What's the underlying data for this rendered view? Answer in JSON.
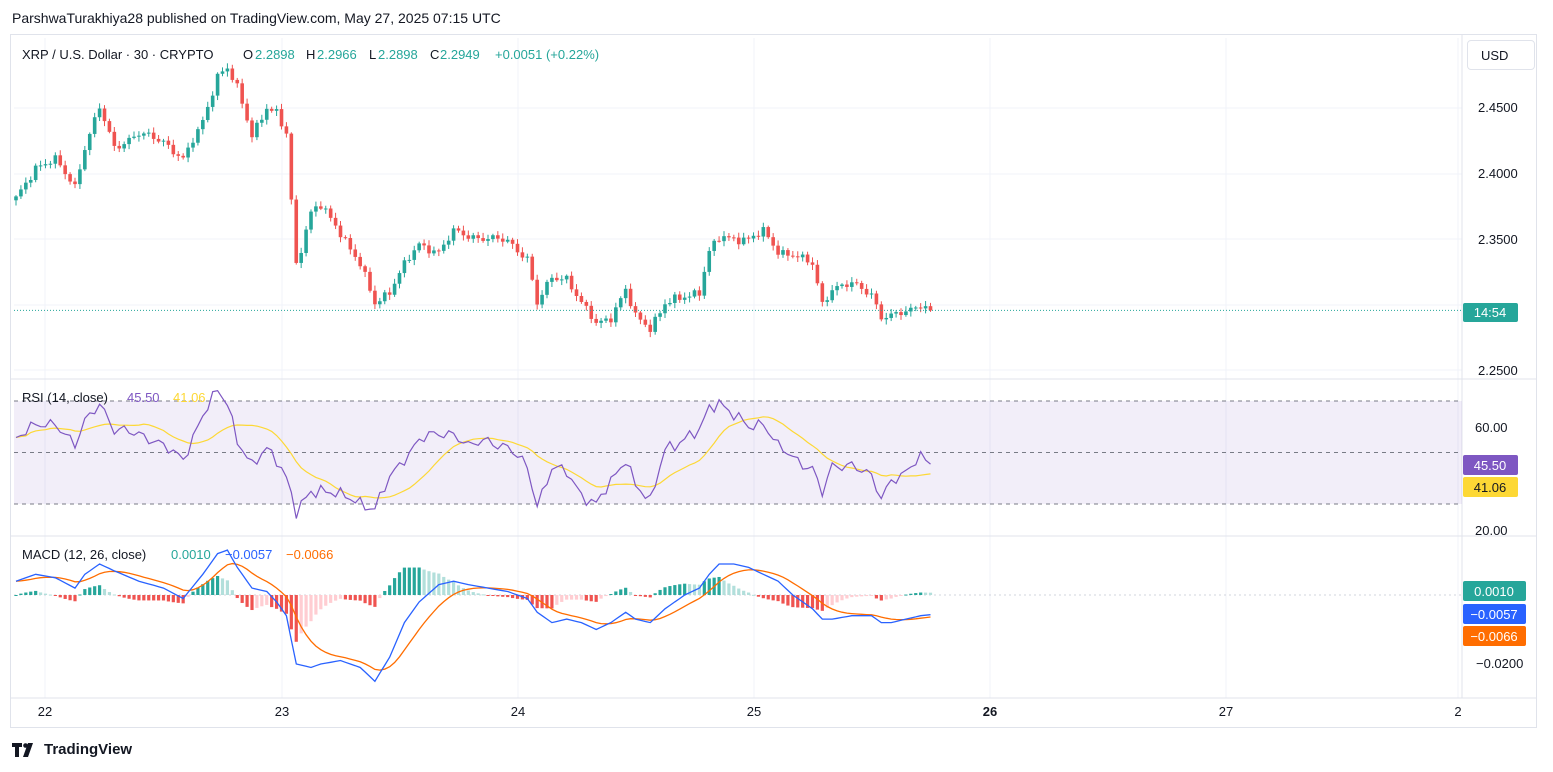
{
  "header": {
    "text": "ParshwaTurakhiya28 published on TradingView.com, May 27, 2025 07:15 UTC"
  },
  "legend": {
    "symbol": "XRP / U.S. Dollar · 30 · CRYPTO",
    "o_label": "O",
    "o_value": "2.2898",
    "h_label": "H",
    "h_value": "2.2966",
    "l_label": "L",
    "l_value": "2.2898",
    "c_label": "C",
    "c_value": "2.2949",
    "change": "+0.0051 (+0.22%)"
  },
  "currency_button": "USD",
  "price_axis": {
    "ticks": [
      "2.4500",
      "2.4000",
      "2.3500",
      "2.2500"
    ],
    "countdown": "14:54"
  },
  "rsi": {
    "title": "RSI (14, close)",
    "value_label": "45.50",
    "ma_label": "41.06",
    "ticks": [
      "60.00",
      "20.00"
    ],
    "badge_rsi": "45.50",
    "badge_ma": "41.06"
  },
  "macd": {
    "title": "MACD (12, 26, close)",
    "hist_label": "0.0010",
    "macd_label": "−0.0057",
    "signal_label": "−0.0066",
    "ticks": [
      "−0.0200"
    ],
    "badge_hist": "0.0010",
    "badge_macd": "−0.0057",
    "badge_signal": "−0.0066"
  },
  "time_axis": {
    "labels": [
      "22",
      "23",
      "24",
      "25",
      "26",
      "27",
      "2"
    ]
  },
  "footer": {
    "brand": "TradingView"
  },
  "colors": {
    "up": "#26a69a",
    "down": "#ef5350",
    "rsi": "#7e57c2",
    "rsi_ma": "#fdd835",
    "macd": "#2962ff",
    "signal": "#ff6d00",
    "hist_up_strong": "#26a69a",
    "hist_up_weak": "#b2dfdb",
    "hist_down_strong": "#ef5350",
    "hist_down_weak": "#ffcdd2"
  },
  "chart_data": {
    "type": "candlestick",
    "price_ylim": [
      2.242,
      2.5
    ],
    "current_price": 2.2949,
    "anchors": [
      [
        0,
        2.38
      ],
      [
        4,
        2.405
      ],
      [
        8,
        2.41
      ],
      [
        12,
        2.39
      ],
      [
        14,
        2.42
      ],
      [
        17,
        2.45
      ],
      [
        20,
        2.42
      ],
      [
        25,
        2.43
      ],
      [
        30,
        2.425
      ],
      [
        34,
        2.41
      ],
      [
        38,
        2.44
      ],
      [
        41,
        2.475
      ],
      [
        43,
        2.48
      ],
      [
        45,
        2.465
      ],
      [
        48,
        2.43
      ],
      [
        51,
        2.45
      ],
      [
        53,
        2.445
      ],
      [
        55,
        2.43
      ],
      [
        57,
        2.33
      ],
      [
        60,
        2.37
      ],
      [
        62,
        2.375
      ],
      [
        66,
        2.355
      ],
      [
        70,
        2.33
      ],
      [
        73,
        2.3
      ],
      [
        76,
        2.31
      ],
      [
        79,
        2.33
      ],
      [
        82,
        2.345
      ],
      [
        86,
        2.34
      ],
      [
        89,
        2.355
      ],
      [
        92,
        2.352
      ],
      [
        96,
        2.35
      ],
      [
        100,
        2.348
      ],
      [
        104,
        2.335
      ],
      [
        106,
        2.3
      ],
      [
        109,
        2.32
      ],
      [
        112,
        2.32
      ],
      [
        115,
        2.3
      ],
      [
        118,
        2.285
      ],
      [
        121,
        2.29
      ],
      [
        124,
        2.31
      ],
      [
        126,
        2.29
      ],
      [
        129,
        2.282
      ],
      [
        132,
        2.3
      ],
      [
        136,
        2.305
      ],
      [
        139,
        2.31
      ],
      [
        141,
        2.34
      ],
      [
        143,
        2.35
      ],
      [
        146,
        2.35
      ],
      [
        149,
        2.35
      ],
      [
        152,
        2.355
      ],
      [
        155,
        2.34
      ],
      [
        158,
        2.338
      ],
      [
        162,
        2.33
      ],
      [
        164,
        2.3
      ],
      [
        166,
        2.312
      ],
      [
        170,
        2.315
      ],
      [
        174,
        2.308
      ],
      [
        176,
        2.29
      ],
      [
        178,
        2.29
      ],
      [
        181,
        2.294
      ],
      [
        184,
        2.3
      ],
      [
        186,
        2.2949
      ]
    ],
    "rsi_anchors": [
      [
        0,
        56
      ],
      [
        4,
        60
      ],
      [
        8,
        62
      ],
      [
        12,
        52
      ],
      [
        14,
        62
      ],
      [
        17,
        70
      ],
      [
        20,
        58
      ],
      [
        25,
        58
      ],
      [
        30,
        52
      ],
      [
        34,
        48
      ],
      [
        38,
        64
      ],
      [
        41,
        74
      ],
      [
        43,
        70
      ],
      [
        45,
        55
      ],
      [
        48,
        44
      ],
      [
        51,
        52
      ],
      [
        53,
        48
      ],
      [
        55,
        40
      ],
      [
        57,
        26
      ],
      [
        60,
        35
      ],
      [
        62,
        36
      ],
      [
        66,
        33
      ],
      [
        70,
        31
      ],
      [
        73,
        28
      ],
      [
        76,
        40
      ],
      [
        79,
        48
      ],
      [
        82,
        55
      ],
      [
        86,
        57
      ],
      [
        89,
        58
      ],
      [
        92,
        52
      ],
      [
        96,
        55
      ],
      [
        100,
        52
      ],
      [
        104,
        44
      ],
      [
        106,
        30
      ],
      [
        109,
        44
      ],
      [
        112,
        42
      ],
      [
        115,
        34
      ],
      [
        118,
        30
      ],
      [
        121,
        38
      ],
      [
        124,
        48
      ],
      [
        126,
        38
      ],
      [
        129,
        30
      ],
      [
        132,
        52
      ],
      [
        136,
        55
      ],
      [
        139,
        58
      ],
      [
        141,
        68
      ],
      [
        143,
        70
      ],
      [
        146,
        64
      ],
      [
        149,
        60
      ],
      [
        152,
        62
      ],
      [
        155,
        52
      ],
      [
        158,
        48
      ],
      [
        162,
        44
      ],
      [
        164,
        34
      ],
      [
        166,
        44
      ],
      [
        170,
        46
      ],
      [
        174,
        40
      ],
      [
        176,
        32
      ],
      [
        178,
        40
      ],
      [
        181,
        42
      ],
      [
        184,
        48
      ],
      [
        186,
        45.5
      ]
    ],
    "macd_anchors": [
      [
        0,
        0.004
      ],
      [
        4,
        0.006
      ],
      [
        8,
        0.005
      ],
      [
        12,
        0.002
      ],
      [
        14,
        0.006
      ],
      [
        17,
        0.009
      ],
      [
        20,
        0.007
      ],
      [
        25,
        0.004
      ],
      [
        30,
        0.002
      ],
      [
        34,
        -0.001
      ],
      [
        38,
        0.006
      ],
      [
        41,
        0.012
      ],
      [
        43,
        0.013
      ],
      [
        45,
        0.008
      ],
      [
        48,
        0.002
      ],
      [
        51,
        0.001
      ],
      [
        53,
        -0.002
      ],
      [
        55,
        -0.006
      ],
      [
        57,
        -0.02
      ],
      [
        60,
        -0.021
      ],
      [
        62,
        -0.02
      ],
      [
        66,
        -0.019
      ],
      [
        70,
        -0.021
      ],
      [
        73,
        -0.025
      ],
      [
        76,
        -0.018
      ],
      [
        79,
        -0.008
      ],
      [
        82,
        -0.002
      ],
      [
        86,
        0.003
      ],
      [
        89,
        0.004
      ],
      [
        92,
        0.003
      ],
      [
        96,
        0.002
      ],
      [
        100,
        0.001
      ],
      [
        104,
        -0.001
      ],
      [
        106,
        -0.005
      ],
      [
        109,
        -0.008
      ],
      [
        112,
        -0.007
      ],
      [
        115,
        -0.008
      ],
      [
        118,
        -0.01
      ],
      [
        121,
        -0.008
      ],
      [
        124,
        -0.005
      ],
      [
        126,
        -0.007
      ],
      [
        129,
        -0.008
      ],
      [
        132,
        -0.004
      ],
      [
        136,
        0.0
      ],
      [
        139,
        0.002
      ],
      [
        141,
        0.006
      ],
      [
        143,
        0.009
      ],
      [
        146,
        0.009
      ],
      [
        149,
        0.008
      ],
      [
        152,
        0.006
      ],
      [
        155,
        0.004
      ],
      [
        158,
        0.0
      ],
      [
        162,
        -0.004
      ],
      [
        164,
        -0.007
      ],
      [
        166,
        -0.007
      ],
      [
        170,
        -0.006
      ],
      [
        174,
        -0.006
      ],
      [
        176,
        -0.008
      ],
      [
        178,
        -0.008
      ],
      [
        181,
        -0.007
      ],
      [
        184,
        -0.006
      ],
      [
        186,
        -0.0057
      ]
    ],
    "macd_ylim": [
      -0.03,
      0.0169
    ],
    "rsi_ylim": [
      10,
      80
    ],
    "rsi_bands": [
      70,
      50,
      30
    ]
  }
}
